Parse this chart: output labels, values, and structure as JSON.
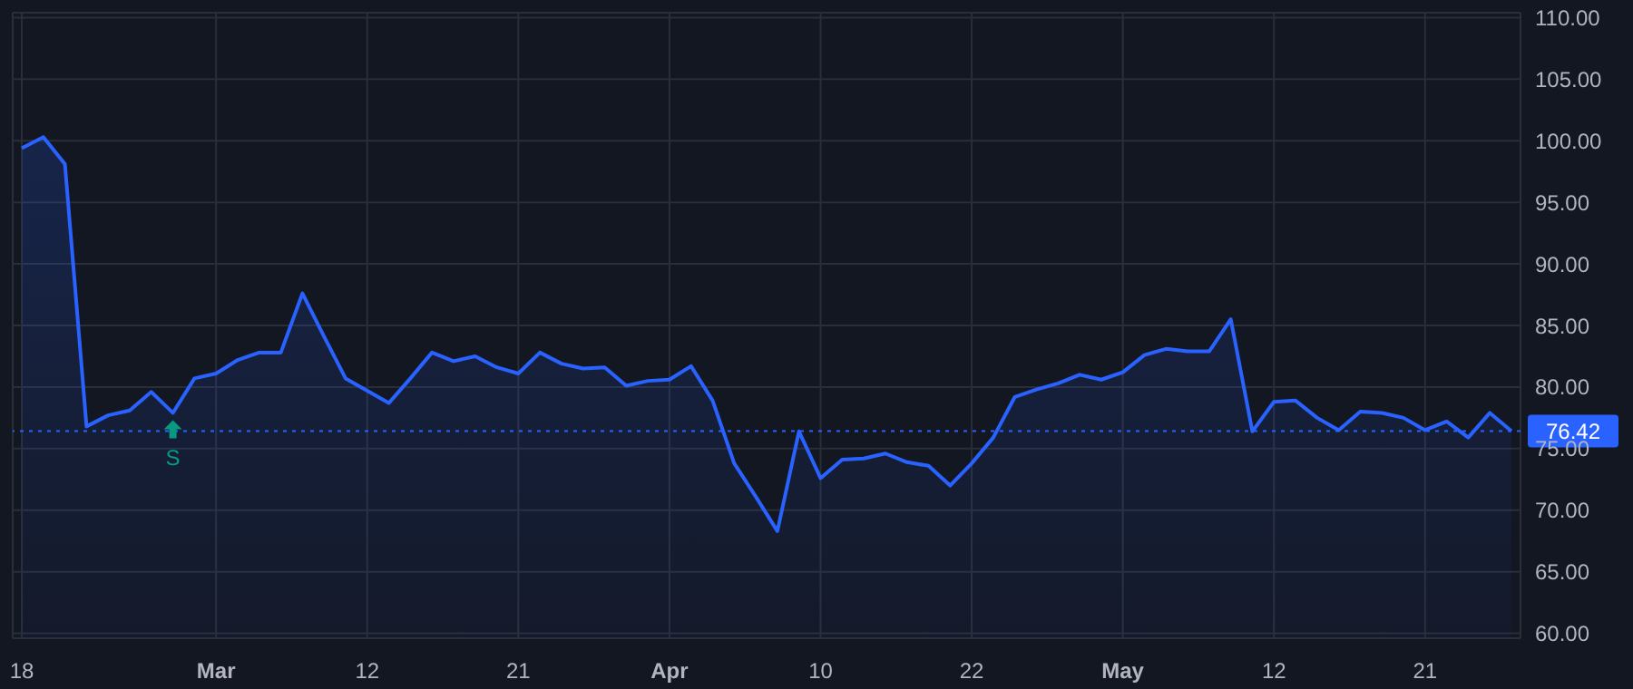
{
  "chart_data": {
    "type": "area",
    "categories": [
      "18",
      null,
      null,
      null,
      null,
      null,
      null,
      null,
      null,
      "Mar",
      null,
      null,
      null,
      null,
      null,
      null,
      "12",
      null,
      null,
      null,
      null,
      null,
      null,
      "21",
      null,
      null,
      null,
      null,
      null,
      null,
      "Apr",
      null,
      null,
      null,
      null,
      null,
      null,
      "10",
      null,
      null,
      null,
      null,
      null,
      null,
      "22",
      null,
      null,
      null,
      null,
      null,
      null,
      "May",
      null,
      null,
      null,
      null,
      null,
      null,
      "12",
      null,
      null,
      null,
      null,
      null,
      null,
      "21",
      null,
      null,
      null,
      null
    ],
    "series": [
      {
        "color": "#2962ff",
        "values": [
          99.4,
          100.3,
          98.1,
          76.8,
          77.7,
          78.1,
          79.6,
          77.9,
          80.7,
          81.1,
          82.2,
          82.8,
          82.8,
          87.6,
          84.1,
          80.7,
          79.7,
          78.7,
          80.7,
          82.8,
          82.1,
          82.5,
          81.6,
          81.1,
          82.8,
          81.9,
          81.5,
          81.6,
          80.1,
          80.5,
          80.6,
          81.7,
          78.9,
          73.8,
          71.1,
          68.3,
          76.4,
          72.6,
          74.1,
          74.2,
          74.6,
          73.9,
          73.6,
          72.0,
          73.8,
          75.9,
          79.2,
          79.8,
          80.3,
          81.0,
          80.6,
          81.2,
          82.6,
          83.1,
          82.9,
          82.9,
          85.5,
          76.4,
          78.8,
          78.9,
          77.5,
          76.5,
          78.0,
          77.9,
          77.5,
          76.5,
          77.2,
          75.9,
          77.9,
          76.42
        ]
      }
    ],
    "ylim": [
      59.6,
      110.4
    ],
    "yticks": [
      {
        "value": 60,
        "label": "60.00"
      },
      {
        "value": 65,
        "label": "65.00"
      },
      {
        "value": 70,
        "label": "70.00"
      },
      {
        "value": 75,
        "label": "75.00"
      },
      {
        "value": 80,
        "label": "80.00"
      },
      {
        "value": 85,
        "label": "85.00"
      },
      {
        "value": 90,
        "label": "90.00"
      },
      {
        "value": 95,
        "label": "95.00"
      },
      {
        "value": 100,
        "label": "100.00"
      },
      {
        "value": 105,
        "label": "105.00"
      },
      {
        "value": 110,
        "label": "110.00"
      }
    ],
    "ref_lines": [
      {
        "axis": "y",
        "value": 76.42,
        "label": "76.42",
        "color": "#2962ff",
        "line_style": "dotted"
      }
    ],
    "annotations": [
      {
        "text": "S",
        "y": 77.9
      }
    ],
    "grid": true,
    "marker": "none",
    "line_style": "solid"
  }
}
